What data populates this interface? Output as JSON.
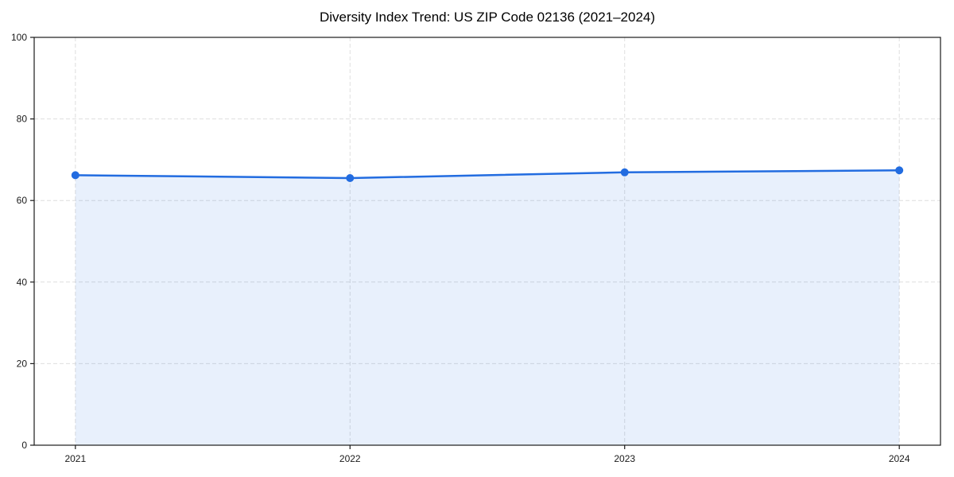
{
  "chart_data": {
    "type": "area",
    "title": "Diversity Index Trend: US ZIP Code 02136 (2021–2024)",
    "x": [
      2021,
      2022,
      2023,
      2024
    ],
    "categories": [
      "2021",
      "2022",
      "2023",
      "2024"
    ],
    "series": [
      {
        "name": "Diversity Index",
        "values": [
          66.2,
          65.5,
          66.9,
          67.4
        ]
      }
    ],
    "xlabel": "",
    "ylabel": "",
    "ylim": [
      0,
      100
    ],
    "yticks": [
      0,
      20,
      40,
      60,
      80,
      100
    ],
    "grid": true,
    "grid_style": "dashed",
    "legend_position": "none",
    "colors": {
      "line": "#226CE0",
      "marker": "#226CE0",
      "fill": "rgba(34,108,224,0.10)",
      "grid": "#dedede",
      "spine": "#1a1a1a",
      "tick_text": "#1a1a1a",
      "background": "#ffffff"
    }
  }
}
